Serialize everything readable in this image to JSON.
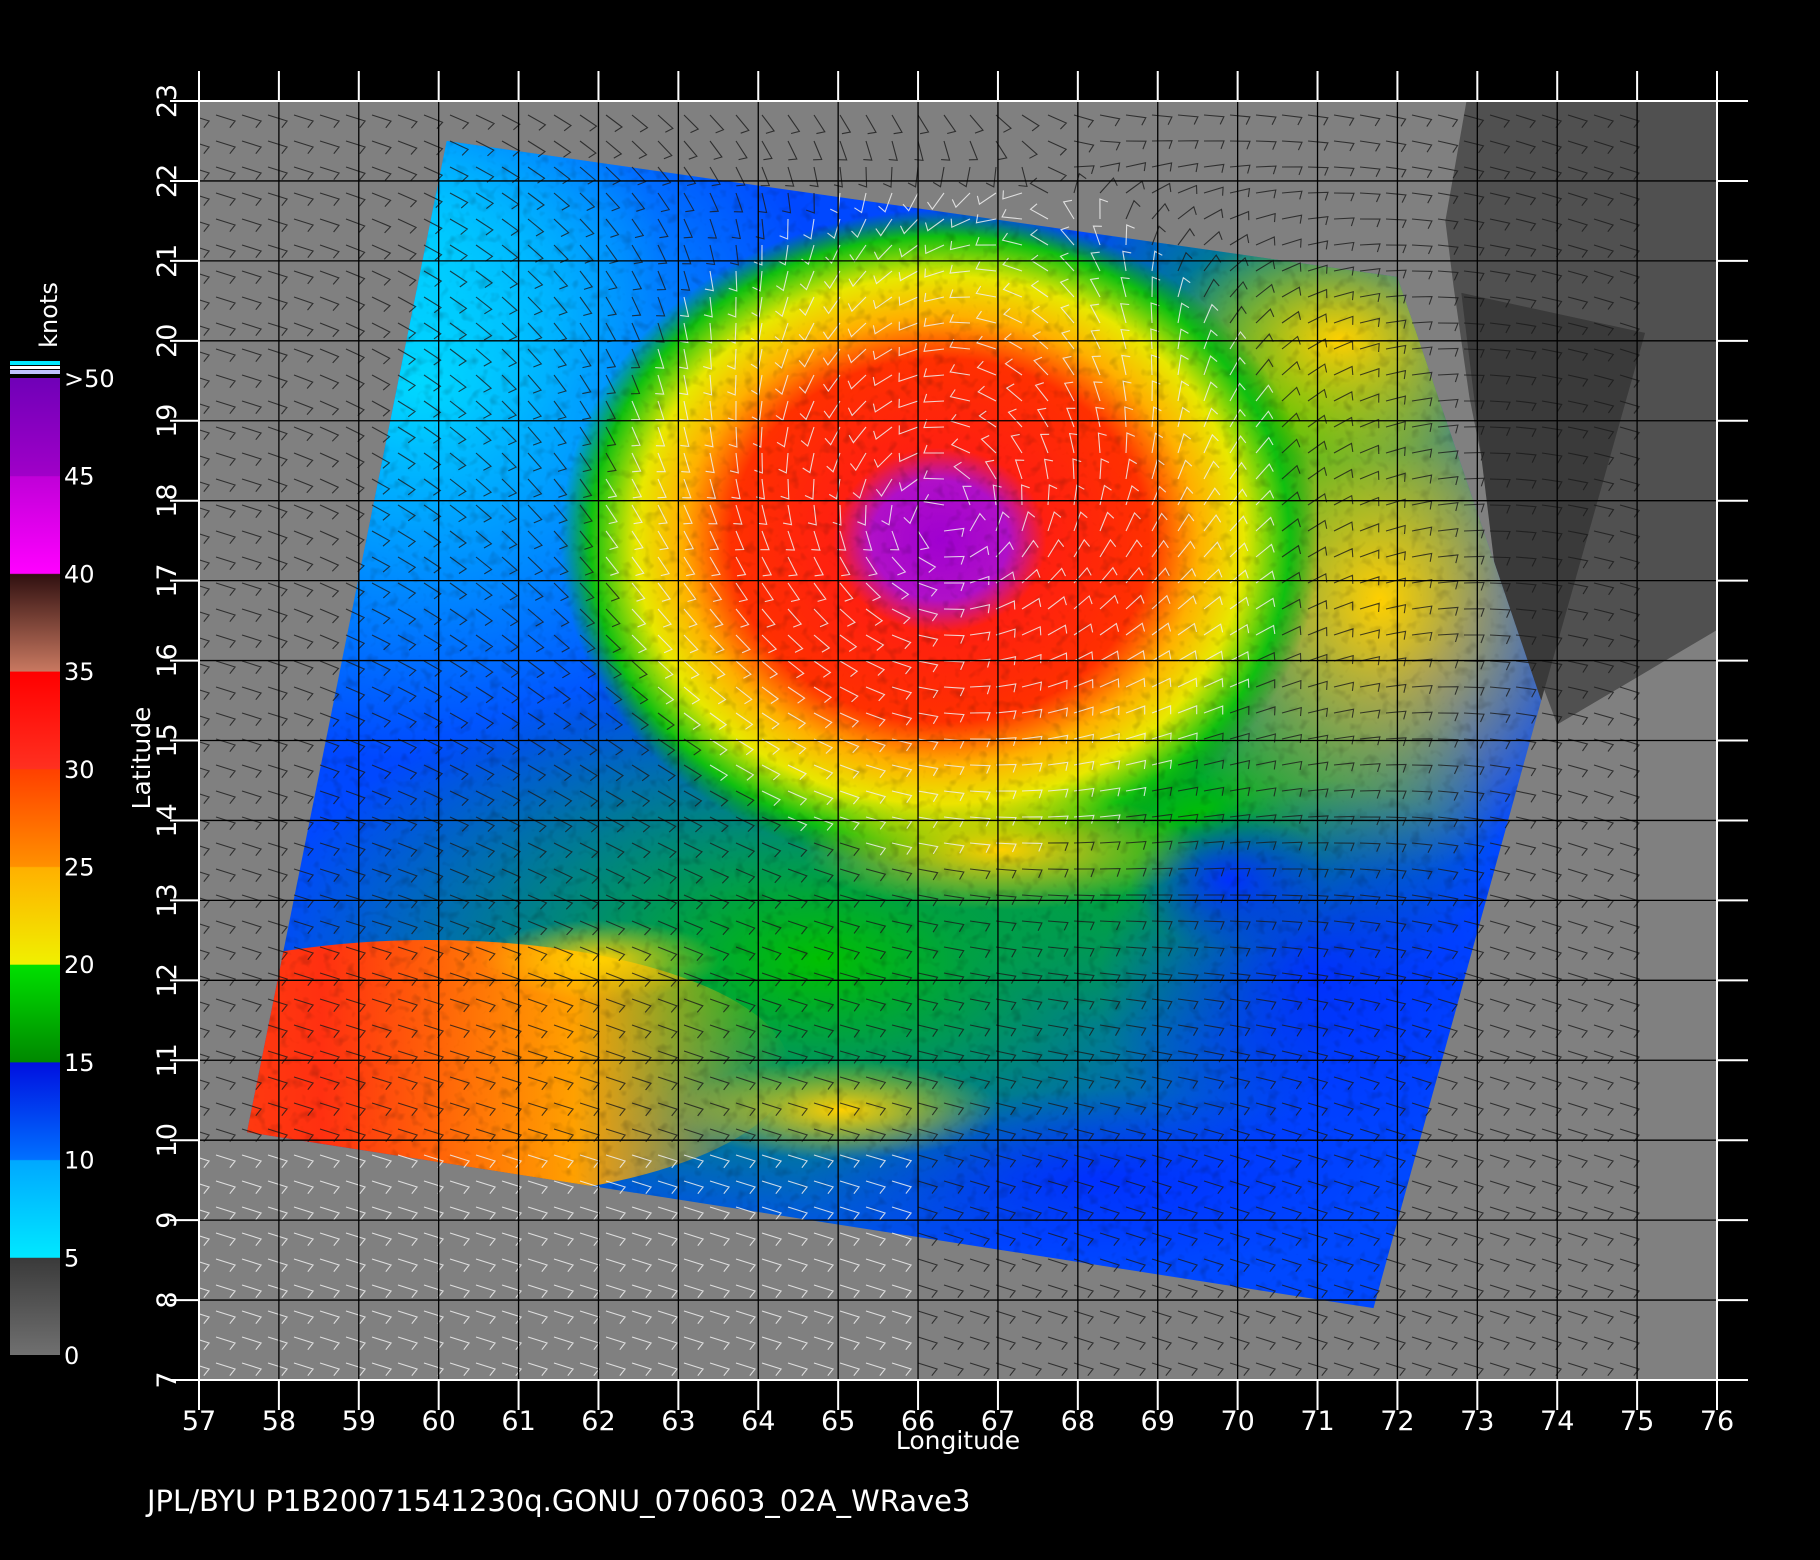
{
  "footer": {
    "text": "JPL/BYU  P1B20071541230q.GONU_070603_02A_WRave3"
  },
  "colorbar": {
    "title": "knots",
    "labels": [
      ">50",
      "45",
      "40",
      "35",
      "30",
      "25",
      "20",
      "15",
      "10",
      "5",
      "0"
    ],
    "values": [
      50,
      45,
      40,
      35,
      30,
      25,
      20,
      15,
      10,
      5,
      0
    ],
    "bands": [
      {
        "from": 0,
        "to": 5,
        "colors": [
          "#707070",
          "#3a3a3a"
        ]
      },
      {
        "from": 5,
        "to": 10,
        "colors": [
          "#00e8ff",
          "#00a8ff"
        ]
      },
      {
        "from": 10,
        "to": 15,
        "colors": [
          "#0070ff",
          "#0010e0"
        ]
      },
      {
        "from": 15,
        "to": 20,
        "colors": [
          "#008800",
          "#00e000"
        ]
      },
      {
        "from": 20,
        "to": 25,
        "colors": [
          "#f0f000",
          "#ffb000"
        ]
      },
      {
        "from": 25,
        "to": 30,
        "colors": [
          "#ff9000",
          "#ff4000"
        ]
      },
      {
        "from": 30,
        "to": 35,
        "colors": [
          "#ff3020",
          "#ff0000"
        ]
      },
      {
        "from": 35,
        "to": 40,
        "colors": [
          "#c87860",
          "#301010"
        ]
      },
      {
        "from": 40,
        "to": 45,
        "colors": [
          "#ff00ff",
          "#c000d8"
        ]
      },
      {
        "from": 45,
        "to": 50,
        "colors": [
          "#a000c8",
          "#7000b8"
        ]
      }
    ]
  },
  "map": {
    "xlabel": "Longitude",
    "ylabel": "Latitude",
    "lon_range": [
      57,
      76
    ],
    "lat_range": [
      7,
      23
    ],
    "lon_ticks": [
      57,
      58,
      59,
      60,
      61,
      62,
      63,
      64,
      65,
      66,
      67,
      68,
      69,
      70,
      71,
      72,
      73,
      74,
      75,
      76
    ],
    "lat_ticks": [
      7,
      8,
      9,
      10,
      11,
      12,
      13,
      14,
      15,
      16,
      17,
      18,
      19,
      20,
      21,
      22,
      23
    ],
    "storm_center": {
      "lon": 66.3,
      "lat": 17.8
    },
    "swath_corners": [
      [
        60.1,
        22.5
      ],
      [
        72.0,
        20.8
      ],
      [
        73.8,
        15.5
      ],
      [
        71.7,
        7.9
      ],
      [
        57.6,
        10.1
      ]
    ],
    "colors": {
      "background": "#000000",
      "no_data": "#808080",
      "land": "#505050",
      "grid": "#000000"
    }
  }
}
